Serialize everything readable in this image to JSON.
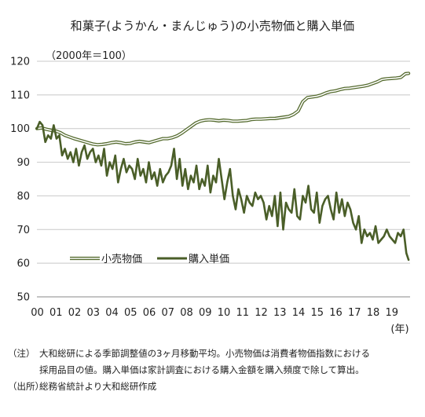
{
  "chart_data": {
    "type": "line",
    "title": "和菓子(ようかん・まんじゅう)の小売物価と購入単価",
    "unit_note": "（2000年＝100）",
    "x_tick_labels": [
      "00",
      "01",
      "02",
      "03",
      "04",
      "05",
      "06",
      "07",
      "08",
      "09",
      "10",
      "11",
      "12",
      "13",
      "14",
      "15",
      "16",
      "17",
      "18",
      "19"
    ],
    "x_unit": "(年)",
    "y_ticks": [
      50,
      60,
      70,
      80,
      90,
      100,
      110,
      120
    ],
    "ylim": [
      50,
      120
    ],
    "x_range": [
      2000.0,
      2020.0
    ],
    "grid": true,
    "legend_position": "lower-left inside",
    "series": [
      {
        "name": "小売物価",
        "style": "double-line",
        "color": "#556b2f",
        "x": [
          2000.0,
          2000.25,
          2000.5,
          2000.75,
          2001.0,
          2001.25,
          2001.5,
          2001.75,
          2002.0,
          2002.25,
          2002.5,
          2002.75,
          2003.0,
          2003.25,
          2003.5,
          2003.75,
          2004.0,
          2004.25,
          2004.5,
          2004.75,
          2005.0,
          2005.25,
          2005.5,
          2005.75,
          2006.0,
          2006.25,
          2006.5,
          2006.75,
          2007.0,
          2007.25,
          2007.5,
          2007.75,
          2008.0,
          2008.25,
          2008.5,
          2008.75,
          2009.0,
          2009.25,
          2009.5,
          2009.75,
          2010.0,
          2010.25,
          2010.5,
          2010.75,
          2011.0,
          2011.25,
          2011.5,
          2011.75,
          2012.0,
          2012.25,
          2012.5,
          2012.75,
          2013.0,
          2013.25,
          2013.5,
          2013.75,
          2014.0,
          2014.25,
          2014.5,
          2014.75,
          2015.0,
          2015.25,
          2015.5,
          2015.75,
          2016.0,
          2016.25,
          2016.5,
          2016.75,
          2017.0,
          2017.25,
          2017.5,
          2017.75,
          2018.0,
          2018.25,
          2018.5,
          2018.75,
          2019.0,
          2019.25,
          2019.5,
          2019.75,
          2019.92
        ],
        "values": [
          100.0,
          100.2,
          99.8,
          99.5,
          99.3,
          98.8,
          98.0,
          97.5,
          97.0,
          96.6,
          96.2,
          95.8,
          95.4,
          95.2,
          95.3,
          95.5,
          95.8,
          96.0,
          95.8,
          95.5,
          95.6,
          96.0,
          96.2,
          96.0,
          95.8,
          96.2,
          96.6,
          97.0,
          97.0,
          97.3,
          97.8,
          98.6,
          99.6,
          100.6,
          101.6,
          102.2,
          102.5,
          102.6,
          102.5,
          102.3,
          102.5,
          102.4,
          102.2,
          102.2,
          102.3,
          102.4,
          102.7,
          102.8,
          102.8,
          102.9,
          103.0,
          103.0,
          103.2,
          103.4,
          103.6,
          104.2,
          105.2,
          108.0,
          109.2,
          109.4,
          109.6,
          110.0,
          110.6,
          111.0,
          111.2,
          111.6,
          111.9,
          112.0,
          112.2,
          112.4,
          112.6,
          112.9,
          113.4,
          113.9,
          114.6,
          114.8,
          114.9,
          115.0,
          115.2,
          116.3,
          116.4
        ]
      },
      {
        "name": "購入単価",
        "style": "thick-line",
        "color": "#4a5e28",
        "x": [
          2000.0,
          2000.15,
          2000.3,
          2000.45,
          2000.6,
          2000.75,
          2000.9,
          2001.05,
          2001.2,
          2001.35,
          2001.5,
          2001.65,
          2001.8,
          2001.95,
          2002.1,
          2002.25,
          2002.4,
          2002.55,
          2002.7,
          2002.85,
          2003.0,
          2003.15,
          2003.3,
          2003.45,
          2003.6,
          2003.75,
          2003.9,
          2004.05,
          2004.2,
          2004.35,
          2004.5,
          2004.65,
          2004.8,
          2004.95,
          2005.1,
          2005.25,
          2005.4,
          2005.55,
          2005.7,
          2005.85,
          2006.0,
          2006.15,
          2006.3,
          2006.45,
          2006.6,
          2006.75,
          2006.9,
          2007.05,
          2007.2,
          2007.35,
          2007.5,
          2007.65,
          2007.8,
          2007.95,
          2008.1,
          2008.25,
          2008.4,
          2008.55,
          2008.7,
          2008.85,
          2009.0,
          2009.15,
          2009.3,
          2009.45,
          2009.6,
          2009.75,
          2009.9,
          2010.05,
          2010.2,
          2010.35,
          2010.5,
          2010.65,
          2010.8,
          2010.95,
          2011.1,
          2011.25,
          2011.4,
          2011.55,
          2011.7,
          2011.85,
          2012.0,
          2012.15,
          2012.3,
          2012.45,
          2012.6,
          2012.75,
          2012.9,
          2013.05,
          2013.2,
          2013.35,
          2013.5,
          2013.65,
          2013.8,
          2013.95,
          2014.1,
          2014.25,
          2014.4,
          2014.55,
          2014.7,
          2014.85,
          2015.0,
          2015.15,
          2015.3,
          2015.45,
          2015.6,
          2015.75,
          2015.9,
          2016.05,
          2016.2,
          2016.35,
          2016.5,
          2016.65,
          2016.8,
          2016.95,
          2017.1,
          2017.25,
          2017.4,
          2017.55,
          2017.7,
          2017.85,
          2018.0,
          2018.15,
          2018.3,
          2018.45,
          2018.6,
          2018.75,
          2018.9,
          2019.05,
          2019.2,
          2019.35,
          2019.5,
          2019.65,
          2019.8,
          2019.92
        ],
        "values": [
          100,
          102,
          101,
          96,
          98,
          97,
          101,
          97,
          98,
          92,
          94,
          91,
          93,
          90,
          94,
          89,
          93,
          95,
          91,
          93,
          94,
          90,
          92,
          89,
          94,
          86,
          90,
          88,
          92,
          84,
          88,
          91,
          87,
          89,
          88,
          85,
          91,
          86,
          88,
          84,
          90,
          85,
          87,
          83,
          88,
          84,
          86,
          87,
          89,
          94,
          85,
          91,
          83,
          88,
          82,
          86,
          84,
          89,
          82,
          85,
          83,
          89,
          81,
          86,
          84,
          91,
          85,
          79,
          84,
          88,
          80,
          76,
          82,
          79,
          75,
          80,
          78,
          77,
          81,
          79,
          80,
          78,
          73,
          77,
          74,
          80,
          71,
          81,
          70,
          78,
          76,
          75,
          82,
          74,
          73,
          80,
          78,
          83,
          76,
          75,
          81,
          72,
          77,
          79,
          80,
          76,
          73,
          81,
          75,
          79,
          74,
          78,
          76,
          72,
          70,
          74,
          66,
          70,
          68,
          69,
          67,
          71,
          66,
          67,
          68,
          70,
          68,
          67,
          66,
          69,
          68,
          70,
          63,
          61
        ]
      }
    ]
  },
  "notes": {
    "line1_prefix": "（注）",
    "line1_text": "大和総研による季節調整値の3ヶ月移動平均。小売物価は消費者物価指数における",
    "line2_text": "採用品目の値。購入単価は家計調査における購入金額を購入頻度で除して算出。",
    "line3_prefix": "（出所）",
    "line3_text": "総務省統計より大和総研作成"
  }
}
